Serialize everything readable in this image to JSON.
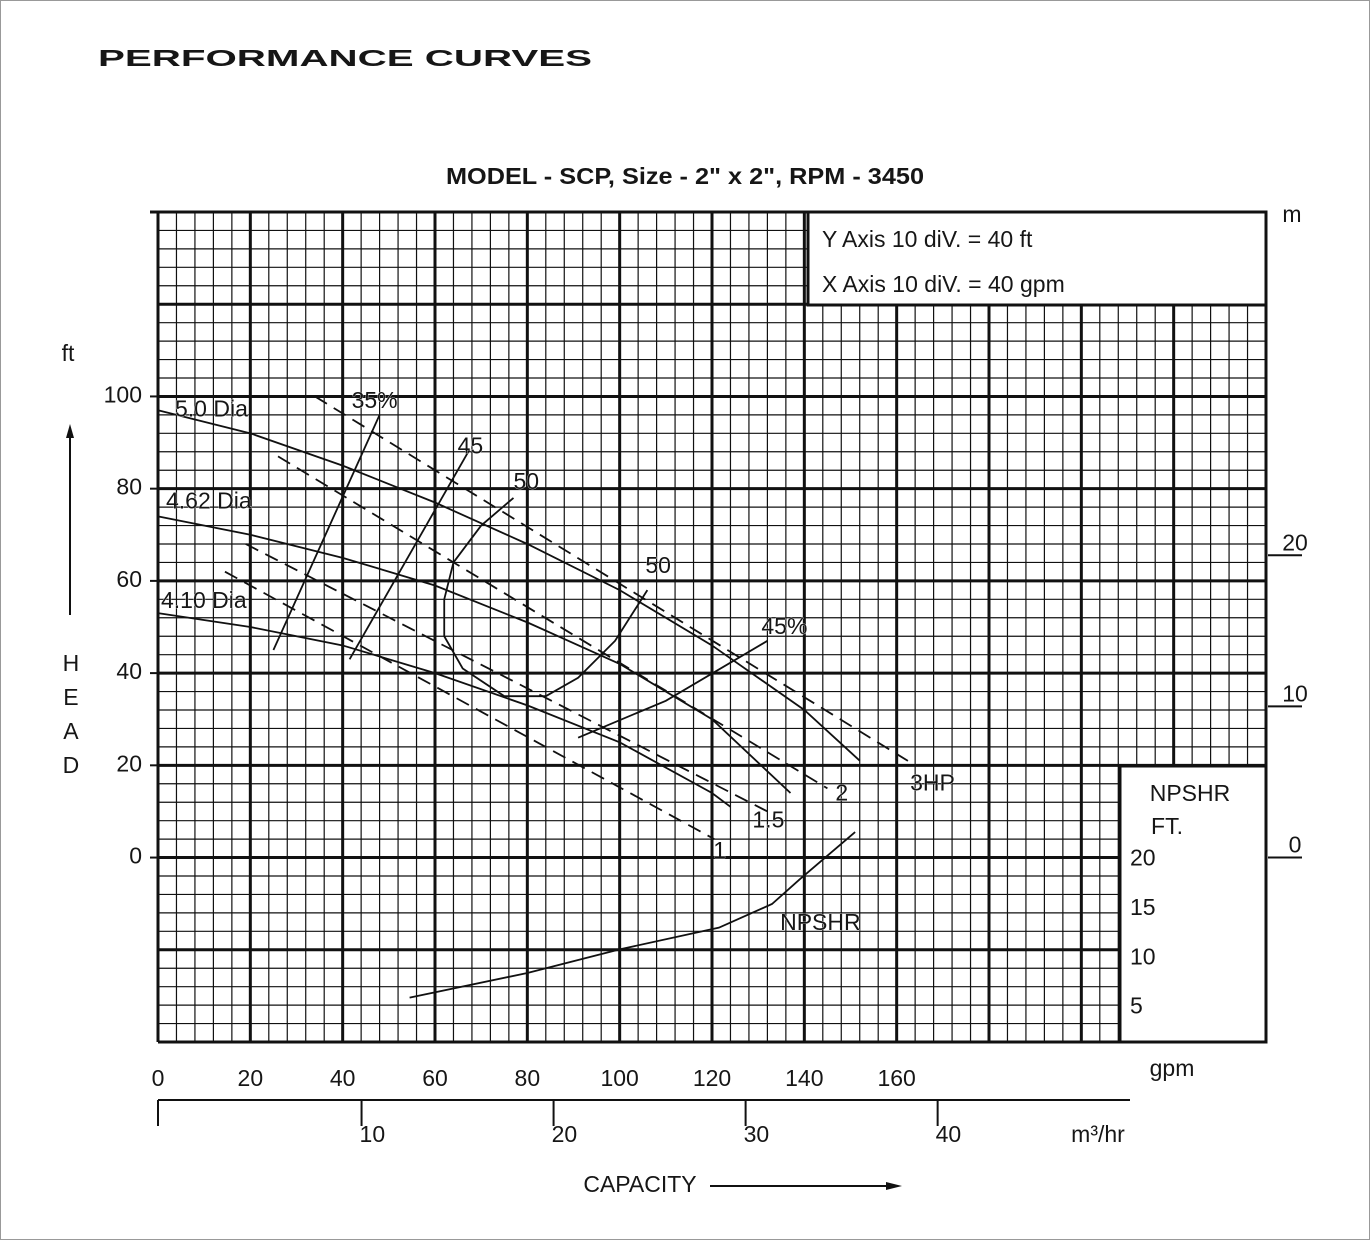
{
  "chart_data": {
    "type": "line",
    "title": "PERFORMANCE CURVES",
    "subtitle": "MODEL - SCP, Size - 2\" x 2\", RPM - 3450",
    "notes": [
      "Y Axis 10 diV. = 40 ft",
      "X Axis 10 diV. = 40 gpm"
    ],
    "x_label": "CAPACITY",
    "x_unit": "gpm",
    "x2_unit": "m³/hr",
    "y_unit": "ft",
    "y_label": "HEAD",
    "y2_unit": "m",
    "y3_label": [
      "NPSHR",
      "FT."
    ],
    "xlim": [
      0,
      240
    ],
    "xticks": [
      0,
      20,
      40,
      60,
      80,
      100,
      120,
      140,
      160
    ],
    "ylim": [
      -40,
      140
    ],
    "yticks": [
      0,
      20,
      40,
      60,
      80,
      100
    ],
    "x2lim": [
      -0.6,
      57.1
    ],
    "x2ticks": [
      10,
      20,
      30,
      40
    ],
    "y2lim": [
      -12.2,
      42.7
    ],
    "y2ticks": [
      0,
      10,
      20
    ],
    "y3lim": [
      1.5,
      29.5
    ],
    "y3ticks": [
      5,
      10,
      15,
      20
    ],
    "grid": true,
    "grid_minor_step": 4,
    "grid_major_step": 20,
    "series": [
      {
        "name": "5.0 Dia",
        "color": "#111111",
        "x": [
          0,
          20,
          40,
          60,
          80,
          100,
          120,
          140,
          152
        ],
        "values": [
          97,
          92,
          85,
          77,
          68,
          58,
          46,
          32,
          21
        ]
      },
      {
        "name": "4.62 Dia",
        "color": "#111111",
        "x": [
          0,
          20,
          40,
          60,
          80,
          100,
          120,
          137
        ],
        "values": [
          74,
          70,
          65,
          59,
          51,
          42,
          30,
          14
        ]
      },
      {
        "name": "4.10 Dia",
        "color": "#111111",
        "x": [
          0,
          20,
          40,
          60,
          80,
          100,
          120,
          124
        ],
        "values": [
          53,
          50,
          46,
          40,
          33,
          25,
          14,
          11
        ]
      },
      {
        "name": "35%",
        "color": "#111111",
        "x": [
          25,
          48
        ],
        "values": [
          45,
          96
        ]
      },
      {
        "name": "45",
        "color": "#111111",
        "x": [
          41.5,
          67.5
        ],
        "values": [
          43,
          88.5
        ]
      },
      {
        "name": "50",
        "color": "#111111",
        "x": [
          77,
          70,
          64,
          62,
          62,
          66,
          75,
          84,
          91,
          99,
          106
        ],
        "values": [
          78,
          72,
          64,
          56,
          48,
          41,
          35,
          35,
          39,
          47,
          58
        ]
      },
      {
        "name": "45%",
        "color": "#111111",
        "x": [
          91,
          110,
          132
        ],
        "values": [
          26,
          34,
          47
        ]
      },
      {
        "name": "1",
        "color": "#111111",
        "dash": true,
        "x": [
          14.5,
          120.5
        ],
        "values": [
          62,
          4
        ]
      },
      {
        "name": "1.5",
        "color": "#111111",
        "dash": true,
        "x": [
          19,
          132
        ],
        "values": [
          68,
          10
        ]
      },
      {
        "name": "2",
        "color": "#111111",
        "dash": true,
        "x": [
          26,
          145
        ],
        "values": [
          87,
          15
        ]
      },
      {
        "name": "3HP",
        "color": "#111111",
        "dash": true,
        "x": [
          34,
          164
        ],
        "values": [
          100,
          20
        ]
      },
      {
        "name": "NPSHR",
        "color": "#111111",
        "axis": "y3",
        "x": [
          54.5,
          80,
          100,
          121.5,
          133,
          139,
          151
        ],
        "values": [
          6.0,
          8.5,
          10.9,
          13.1,
          15.5,
          18,
          22.8
        ]
      }
    ]
  }
}
